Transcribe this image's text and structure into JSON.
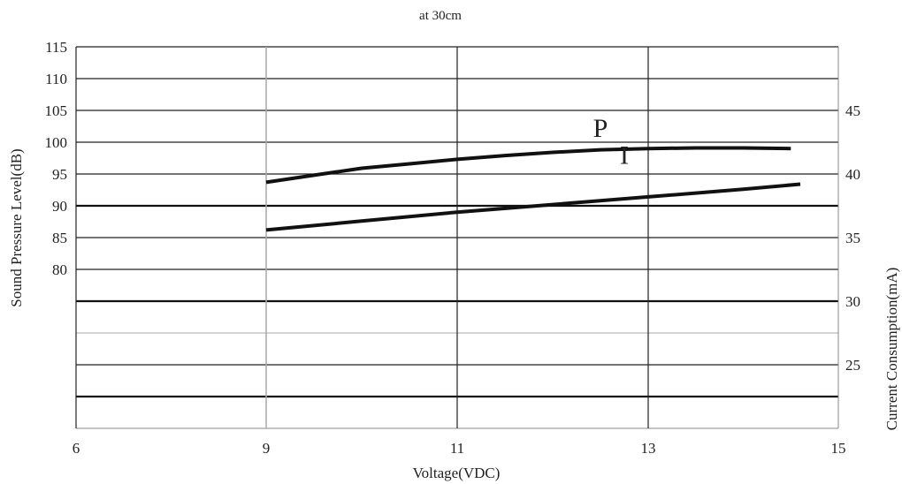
{
  "chart_data": {
    "type": "line",
    "title": "at 30cm",
    "xlabel": "Voltage(VDC)",
    "ylabel": "Sound Pressure Level(dB)",
    "y2label": "Current Consumption(mA)",
    "xlim": [
      6,
      15
    ],
    "xticks": [
      "6",
      "9",
      "11",
      "13",
      "15"
    ],
    "ylim": [
      55,
      115
    ],
    "yticks": [
      "80",
      "85",
      "90",
      "95",
      "100",
      "105",
      "110",
      "115"
    ],
    "y2lim": [
      20,
      50
    ],
    "y2ticks": [
      "25",
      "30",
      "35",
      "40",
      "45"
    ],
    "grid": true,
    "series": [
      {
        "name": "P",
        "axis": "left",
        "x": [
          9,
          9.5,
          10,
          10.5,
          11,
          11.5,
          12,
          12.5,
          13,
          13.5,
          14,
          14.5
        ],
        "y": [
          93.7,
          94.8,
          95.9,
          96.6,
          97.3,
          97.9,
          98.4,
          98.8,
          99.0,
          99.1,
          99.1,
          99.0
        ]
      },
      {
        "name": "I",
        "axis": "right",
        "x": [
          9,
          10,
          11,
          12,
          13,
          14,
          14.6
        ],
        "y": [
          35.6,
          36.3,
          37.0,
          37.6,
          38.2,
          38.8,
          39.2
        ]
      }
    ]
  }
}
